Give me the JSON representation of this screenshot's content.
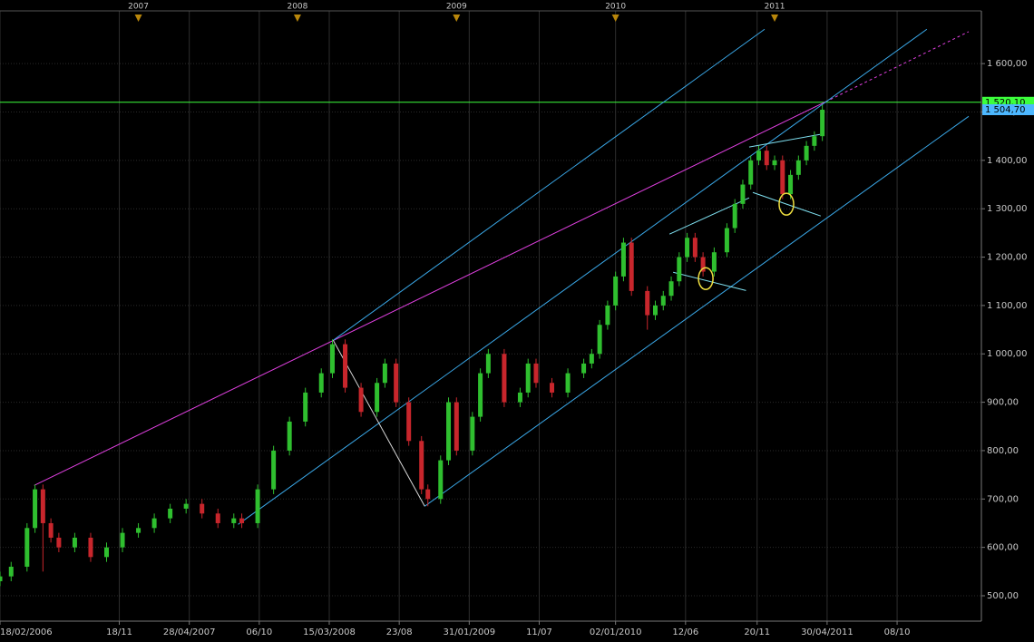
{
  "chart_data": {
    "type": "candlestick",
    "up_color": "#2fbf2f",
    "down_color": "#c8262c",
    "x": [
      2006.13,
      2006.2,
      2006.3,
      2006.35,
      2006.4,
      2006.45,
      2006.5,
      2006.6,
      2006.7,
      2006.8,
      2006.9,
      2007.0,
      2007.1,
      2007.2,
      2007.3,
      2007.4,
      2007.5,
      2007.6,
      2007.65,
      2007.75,
      2007.85,
      2007.95,
      2008.05,
      2008.15,
      2008.22,
      2008.3,
      2008.4,
      2008.5,
      2008.55,
      2008.62,
      2008.7,
      2008.78,
      2008.82,
      2008.9,
      2008.95,
      2009.0,
      2009.1,
      2009.15,
      2009.2,
      2009.3,
      2009.4,
      2009.45,
      2009.5,
      2009.6,
      2009.7,
      2009.8,
      2009.85,
      2009.9,
      2009.95,
      2010.0,
      2010.05,
      2010.1,
      2010.2,
      2010.25,
      2010.3,
      2010.35,
      2010.4,
      2010.45,
      2010.5,
      2010.55,
      2010.62,
      2010.7,
      2010.75,
      2010.8,
      2010.85,
      2010.9,
      2010.95,
      2011.0,
      2011.05,
      2011.1,
      2011.15,
      2011.2,
      2011.25,
      2011.3
    ],
    "open": [
      530,
      540,
      560,
      640,
      720,
      650,
      620,
      600,
      620,
      580,
      600,
      630,
      640,
      660,
      680,
      690,
      670,
      650,
      660,
      650,
      720,
      800,
      860,
      920,
      960,
      1020,
      930,
      880,
      940,
      980,
      900,
      820,
      720,
      700,
      780,
      900,
      800,
      870,
      960,
      1000,
      900,
      920,
      980,
      940,
      920,
      960,
      980,
      1000,
      1060,
      1100,
      1160,
      1230,
      1130,
      1080,
      1100,
      1120,
      1150,
      1200,
      1240,
      1200,
      1170,
      1210,
      1260,
      1310,
      1350,
      1400,
      1420,
      1390,
      1400,
      1330,
      1370,
      1400,
      1430,
      1450
    ],
    "high": [
      550,
      570,
      650,
      730,
      730,
      660,
      630,
      630,
      630,
      610,
      640,
      650,
      670,
      690,
      700,
      700,
      680,
      670,
      670,
      730,
      810,
      870,
      930,
      970,
      1030,
      1030,
      940,
      950,
      990,
      990,
      910,
      830,
      730,
      790,
      910,
      910,
      880,
      970,
      1010,
      1010,
      930,
      990,
      990,
      950,
      970,
      990,
      1010,
      1070,
      1110,
      1170,
      1240,
      1240,
      1140,
      1110,
      1130,
      1160,
      1210,
      1250,
      1250,
      1210,
      1220,
      1270,
      1320,
      1360,
      1410,
      1430,
      1430,
      1410,
      1410,
      1380,
      1410,
      1440,
      1460,
      1515
    ],
    "low": [
      520,
      530,
      550,
      630,
      550,
      610,
      590,
      590,
      570,
      570,
      590,
      620,
      630,
      650,
      670,
      660,
      640,
      640,
      640,
      640,
      710,
      790,
      850,
      910,
      950,
      920,
      870,
      870,
      930,
      890,
      810,
      710,
      685,
      690,
      770,
      790,
      790,
      860,
      950,
      890,
      890,
      910,
      930,
      910,
      910,
      950,
      970,
      990,
      1050,
      1090,
      1150,
      1120,
      1050,
      1070,
      1090,
      1110,
      1140,
      1190,
      1190,
      1160,
      1160,
      1200,
      1250,
      1300,
      1340,
      1390,
      1380,
      1380,
      1320,
      1320,
      1360,
      1390,
      1420,
      1440
    ],
    "close": [
      540,
      560,
      640,
      720,
      650,
      620,
      600,
      620,
      580,
      600,
      630,
      640,
      660,
      680,
      690,
      670,
      650,
      660,
      650,
      720,
      800,
      860,
      920,
      960,
      1020,
      930,
      880,
      940,
      980,
      900,
      820,
      720,
      700,
      780,
      900,
      800,
      870,
      960,
      1000,
      900,
      920,
      980,
      940,
      920,
      960,
      980,
      1000,
      1060,
      1100,
      1160,
      1230,
      1130,
      1080,
      1100,
      1120,
      1150,
      1200,
      1240,
      1200,
      1170,
      1210,
      1260,
      1310,
      1350,
      1400,
      1420,
      1390,
      1400,
      1330,
      1370,
      1400,
      1430,
      1450,
      1504.7
    ],
    "xlim": [
      2006.13,
      2012.3
    ],
    "ylim": [
      447.5,
      1709
    ],
    "grid": true,
    "xticks": [
      {
        "value": 2006.13,
        "label": "18/02/2006"
      },
      {
        "value": 2006.88,
        "label": "18/11"
      },
      {
        "value": 2007.32,
        "label": "28/04/2007"
      },
      {
        "value": 2007.76,
        "label": "06/10"
      },
      {
        "value": 2008.2,
        "label": "15/03/2008"
      },
      {
        "value": 2008.64,
        "label": "23/08"
      },
      {
        "value": 2009.08,
        "label": "31/01/2009"
      },
      {
        "value": 2009.52,
        "label": "11/07"
      },
      {
        "value": 2010.0,
        "label": "02/01/2010"
      },
      {
        "value": 2010.44,
        "label": "12/06"
      },
      {
        "value": 2010.89,
        "label": "20/11"
      },
      {
        "value": 2011.33,
        "label": "30/04/2011"
      },
      {
        "value": 2011.77,
        "label": "08/10"
      }
    ],
    "year_markers": [
      2007,
      2008,
      2009,
      2010,
      2011
    ],
    "yticks": [
      {
        "value": 500,
        "label": "500,00"
      },
      {
        "value": 600,
        "label": "600,00"
      },
      {
        "value": 700,
        "label": "700,00"
      },
      {
        "value": 800,
        "label": "800,00"
      },
      {
        "value": 900,
        "label": "900,00"
      },
      {
        "value": 1000,
        "label": "1 000,00"
      },
      {
        "value": 1100,
        "label": "1 100,00"
      },
      {
        "value": 1200,
        "label": "1 200,00"
      },
      {
        "value": 1300,
        "label": "1 300,00"
      },
      {
        "value": 1400,
        "label": "1 400,00"
      },
      {
        "value": 1500,
        "label": "1 500,00"
      },
      {
        "value": 1600,
        "label": "1 600,00"
      }
    ],
    "level_line": {
      "value": 1520.1,
      "label": "1 520,10",
      "color": "#3cff3c"
    },
    "last_price": {
      "value": 1504.7,
      "label": "1 504,70",
      "color": "#4db8ff"
    },
    "drawings": [
      {
        "color": "#e040e0",
        "x": [
          2006.345,
          2011.32
        ],
        "y": [
          728,
          1521
        ]
      },
      {
        "color": "#e040e0",
        "x": [
          2011.32,
          2012.22
        ],
        "y": [
          1521,
          1666
        ],
        "style": "dashed"
      },
      {
        "color": "#3aa8e8",
        "x": [
          2008.225,
          2010.937
        ],
        "y": [
          1028,
          1671
        ]
      },
      {
        "color": "#3aa8e8",
        "x": [
          2007.627,
          2011.957
        ],
        "y": [
          647.5,
          1671
        ]
      },
      {
        "color": "#3aa8e8",
        "x": [
          2008.8,
          2012.22
        ],
        "y": [
          685,
          1491
        ]
      },
      {
        "color": "#d8d8d8",
        "x": [
          2008.225,
          2008.8
        ],
        "y": [
          1028,
          685
        ]
      },
      {
        "color": "#7fe0f0",
        "x": [
          2010.339,
          2010.84
        ],
        "y": [
          1247.5,
          1322.5
        ]
      },
      {
        "color": "#7fe0f0",
        "x": [
          2010.362,
          2010.82
        ],
        "y": [
          1168.7,
          1131
        ]
      },
      {
        "color": "#7fe0f0",
        "x": [
          2010.84,
          2011.285
        ],
        "y": [
          1427.5,
          1453.7
        ]
      },
      {
        "color": "#7fe0f0",
        "x": [
          2010.863,
          2011.29
        ],
        "y": [
          1333.7,
          1285
        ]
      }
    ],
    "circles": {
      "color": "#f0e040",
      "x": [
        2010.567,
        2011.074
      ],
      "y": [
        1155.6,
        1309.4
      ]
    }
  }
}
